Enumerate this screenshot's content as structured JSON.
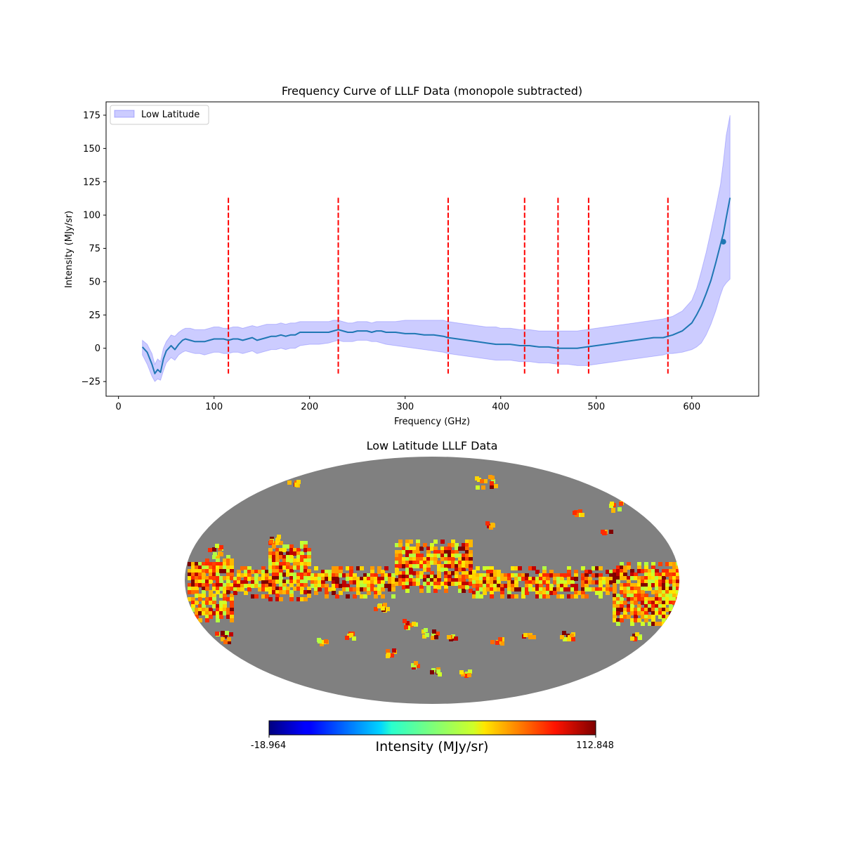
{
  "chart_data": [
    {
      "type": "line",
      "title": "Frequency Curve of LLLF Data (monopole subtracted)",
      "xlabel": "Frequency (GHz)",
      "ylabel": "Intensity (MJy/sr)",
      "xlim": [
        -13,
        670
      ],
      "ylim": [
        -36,
        185
      ],
      "xticks": [
        0,
        100,
        200,
        300,
        400,
        500,
        600
      ],
      "yticks": [
        -25,
        0,
        25,
        50,
        75,
        100,
        125,
        150,
        175
      ],
      "legend": {
        "entries": [
          "Low Latitude"
        ],
        "location": "top-left"
      },
      "series": [
        {
          "name": "mean",
          "color": "#1f77b4",
          "x": [
            25,
            30,
            35,
            38,
            41,
            44,
            47,
            50,
            55,
            59,
            63,
            67,
            70,
            75,
            80,
            85,
            90,
            95,
            100,
            105,
            110,
            115,
            120,
            125,
            130,
            135,
            140,
            145,
            150,
            155,
            160,
            165,
            170,
            175,
            180,
            185,
            190,
            200,
            210,
            220,
            225,
            230,
            235,
            240,
            245,
            250,
            255,
            260,
            265,
            270,
            275,
            280,
            290,
            300,
            310,
            320,
            330,
            340,
            345,
            355,
            365,
            375,
            385,
            395,
            400,
            410,
            420,
            430,
            440,
            450,
            460,
            470,
            480,
            490,
            500,
            510,
            520,
            530,
            540,
            550,
            560,
            570,
            575,
            580,
            590,
            600,
            605,
            610,
            615,
            620,
            625,
            630,
            633,
            636,
            640
          ],
          "y": [
            1,
            -3,
            -12,
            -19,
            -16,
            -18,
            -8,
            -2,
            2,
            -1,
            3,
            6,
            7,
            6,
            5,
            5,
            5,
            6,
            7,
            7,
            7,
            6,
            7,
            7,
            6,
            7,
            8,
            6,
            7,
            8,
            9,
            9,
            10,
            9,
            10,
            10,
            12,
            12,
            12,
            12,
            13,
            14,
            13,
            12,
            12,
            13,
            13,
            13,
            12,
            13,
            13,
            12,
            12,
            11,
            11,
            10,
            10,
            9,
            8,
            7,
            6,
            5,
            4,
            3,
            3,
            3,
            2,
            2,
            1,
            1,
            0,
            0,
            0,
            1,
            2,
            3,
            4,
            5,
            6,
            7,
            8,
            8,
            9,
            10,
            13,
            19,
            25,
            32,
            41,
            51,
            64,
            78,
            86,
            98,
            113
          ]
        },
        {
          "name": "Low Latitude",
          "kind": "band",
          "color": "#0000ff",
          "x": [
            25,
            30,
            35,
            38,
            41,
            44,
            47,
            50,
            55,
            59,
            63,
            67,
            70,
            75,
            80,
            85,
            90,
            95,
            100,
            105,
            110,
            115,
            120,
            125,
            130,
            135,
            140,
            145,
            150,
            155,
            160,
            165,
            170,
            175,
            180,
            185,
            190,
            200,
            210,
            220,
            225,
            230,
            235,
            240,
            245,
            250,
            255,
            260,
            265,
            270,
            275,
            280,
            290,
            300,
            310,
            320,
            330,
            340,
            345,
            355,
            365,
            375,
            385,
            395,
            400,
            410,
            420,
            430,
            440,
            450,
            460,
            470,
            480,
            490,
            500,
            510,
            520,
            530,
            540,
            550,
            560,
            570,
            575,
            580,
            590,
            600,
            605,
            610,
            615,
            620,
            625,
            630,
            633,
            636,
            640
          ],
          "lower": [
            -5,
            -12,
            -21,
            -25,
            -23,
            -24,
            -17,
            -11,
            -7,
            -9,
            -5,
            -3,
            -2,
            -3,
            -4,
            -4,
            -5,
            -4,
            -3,
            -3,
            -4,
            -4,
            -3,
            -3,
            -4,
            -3,
            -2,
            -4,
            -3,
            -2,
            -1,
            -1,
            0,
            -1,
            0,
            0,
            2,
            3,
            3,
            4,
            5,
            6,
            5,
            5,
            5,
            6,
            6,
            6,
            5,
            5,
            4,
            3,
            2,
            1,
            0,
            -1,
            -2,
            -3,
            -4,
            -5,
            -6,
            -7,
            -8,
            -9,
            -9,
            -9,
            -10,
            -10,
            -11,
            -11,
            -12,
            -12,
            -13,
            -13,
            -12,
            -11,
            -10,
            -9,
            -8,
            -7,
            -6,
            -5,
            -4,
            -4,
            -3,
            -1,
            1,
            4,
            10,
            18,
            28,
            40,
            46,
            49,
            52
          ],
          "upper": [
            6,
            3,
            -4,
            -12,
            -8,
            -10,
            0,
            5,
            10,
            9,
            12,
            14,
            15,
            15,
            14,
            14,
            14,
            15,
            16,
            16,
            15,
            15,
            16,
            16,
            15,
            16,
            17,
            16,
            17,
            18,
            18,
            18,
            19,
            18,
            19,
            19,
            20,
            20,
            20,
            20,
            21,
            21,
            20,
            19,
            19,
            20,
            20,
            20,
            19,
            20,
            20,
            20,
            20,
            21,
            21,
            21,
            21,
            21,
            20,
            19,
            18,
            17,
            16,
            16,
            15,
            15,
            14,
            14,
            13,
            13,
            13,
            13,
            13,
            14,
            15,
            16,
            17,
            18,
            19,
            20,
            21,
            22,
            23,
            24,
            28,
            36,
            45,
            58,
            72,
            88,
            105,
            123,
            140,
            160,
            175
          ]
        }
      ],
      "markers": [
        {
          "x": 633,
          "y": 80
        }
      ],
      "vlines": {
        "x": [
          115,
          230,
          345,
          425,
          460,
          492,
          575
        ],
        "ymin": -19,
        "ymax": 113,
        "color": "#ff0000",
        "style": "dashed"
      }
    },
    {
      "type": "heatmap",
      "projection": "mollweide",
      "title": "Low Latitude LLLF Data",
      "colormap": "jet",
      "mask_color": "#808080",
      "colorbar": {
        "label": "Intensity (MJy/sr)",
        "min_label": "-18.964",
        "max_label": "112.848",
        "vmin": -18.964,
        "vmax": 112.848
      }
    }
  ]
}
